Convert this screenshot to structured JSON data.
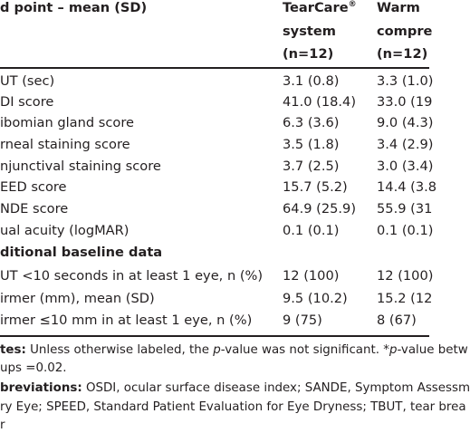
{
  "header": {
    "col0": "d point – mean (SD)",
    "col1_line1": "TearCare",
    "col1_sup": "®",
    "col1_line2": "system",
    "col1_line3": "(n=12)",
    "col2_line1": "Warm",
    "col2_line2": "compre",
    "col2_line3": "(n=12)"
  },
  "rows": [
    {
      "label": "UT (sec)",
      "v1": "3.1 (0.8)",
      "v2": "3.3 (1.0)"
    },
    {
      "label": "DI score",
      "v1": "41.0 (18.4)",
      "v2": "33.0 (19"
    },
    {
      "label": "ibomian gland score",
      "v1": "6.3 (3.6)",
      "v2": "9.0 (4.3)"
    },
    {
      "label": "rneal staining score",
      "v1": "3.5 (1.8)",
      "v2": "3.4 (2.9)"
    },
    {
      "label": "njunctival staining score",
      "v1": "3.7 (2.5)",
      "v2": "3.0 (3.4)"
    },
    {
      "label": "EED score",
      "v1": "15.7 (5.2)",
      "v2": "14.4 (3.8"
    },
    {
      "label": "NDE score",
      "v1": "64.9 (25.9)",
      "v2": "55.9 (31"
    },
    {
      "label": "ual acuity (logMAR)",
      "v1": "0.1 (0.1)",
      "v2": "0.1 (0.1)"
    }
  ],
  "section_title": "ditional baseline data",
  "rows2": [
    {
      "label": "UT <10 seconds in at least 1 eye, n (%)",
      "v1": "12 (100)",
      "v2": "12 (100)"
    },
    {
      "label": "irmer (mm), mean (SD)",
      "v1": "9.5 (10.2)",
      "v2": "15.2 (12"
    },
    {
      "label": "irmer ≤10 mm in at least 1 eye, n (%)",
      "v1": "9 (75)",
      "v2": "8 (67)"
    }
  ],
  "notes": {
    "n1_bold": "tes:",
    "n1_a": " Unless otherwise labeled, the ",
    "n1_p1": "p",
    "n1_b": "-value was not significant. *",
    "n1_p2": "p",
    "n1_c": "-value betw",
    "n2": "ups =0.02.",
    "n3_bold": "breviations:",
    "n3_text": " OSDI, ocular surface disease index; SANDE, Symptom Assessm",
    "n4": "ry Eye; SPEED, Standard Patient Evaluation for Eye Dryness; TBUT, tear brea",
    "n5": "r"
  }
}
